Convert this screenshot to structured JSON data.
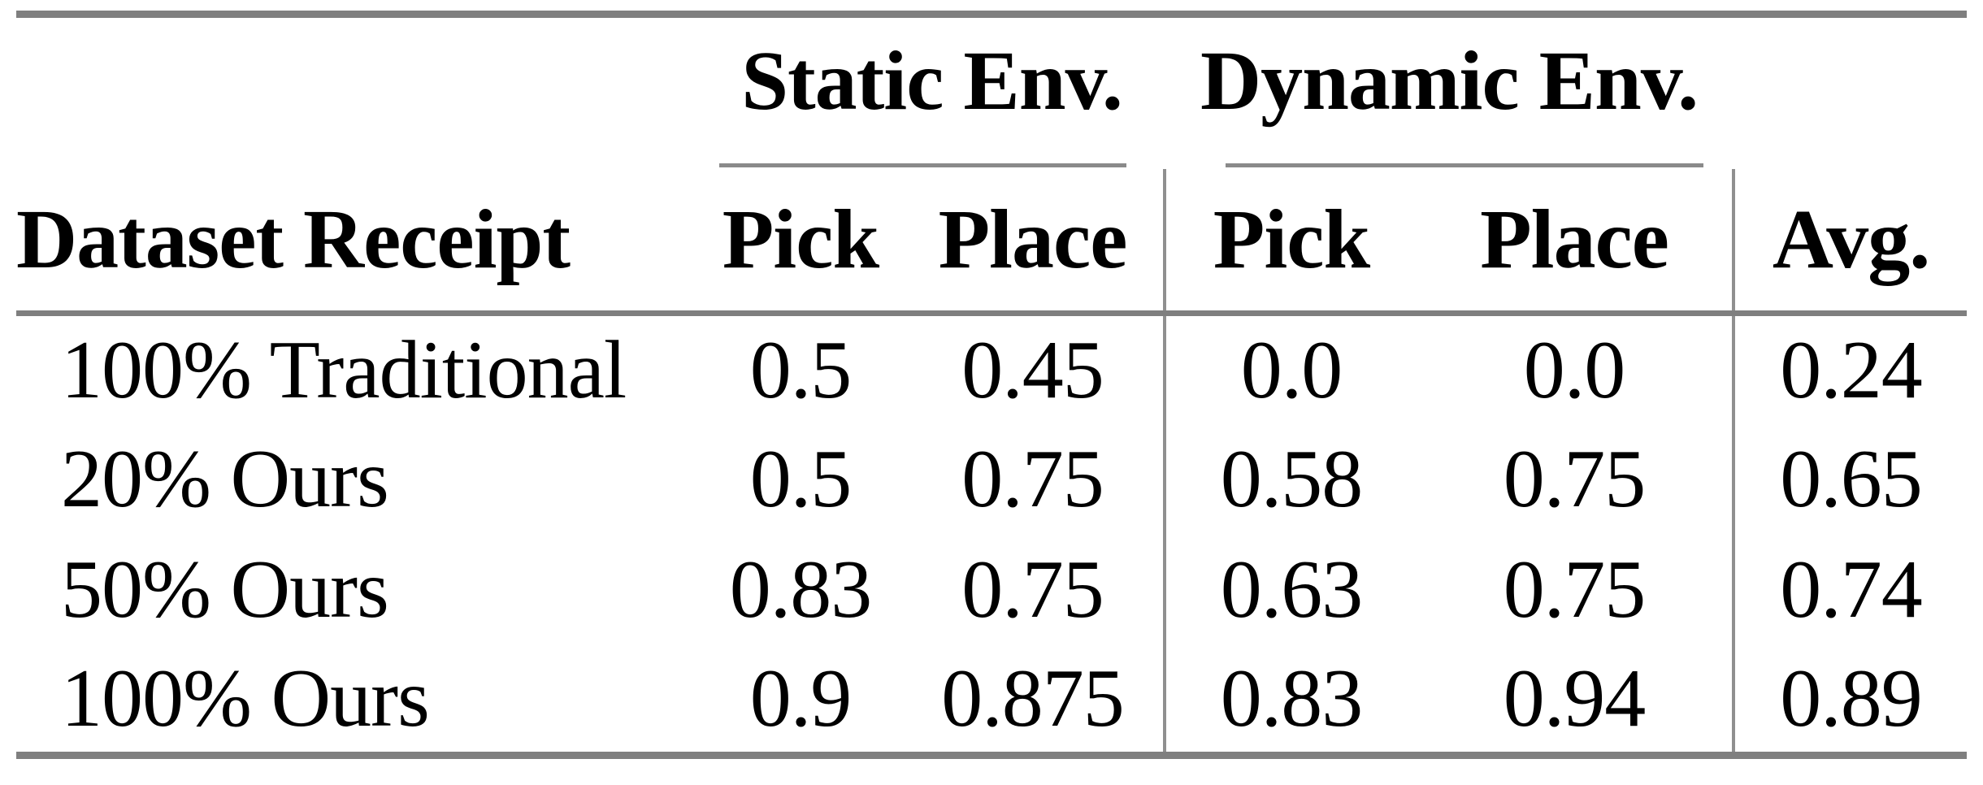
{
  "table": {
    "groups": {
      "static": "Static Env.",
      "dynamic": "Dynamic Env."
    },
    "headers": {
      "dataset": "Dataset Receipt",
      "static_pick": "Pick",
      "static_place": "Place",
      "dynamic_pick": "Pick",
      "dynamic_place": "Place",
      "avg": "Avg."
    },
    "rows": [
      {
        "label": "100% Traditional",
        "static_pick": "0.5",
        "static_place": "0.45",
        "dynamic_pick": "0.0",
        "dynamic_place": "0.0",
        "avg": "0.24"
      },
      {
        "label": "20% Ours",
        "static_pick": "0.5",
        "static_place": "0.75",
        "dynamic_pick": "0.58",
        "dynamic_place": "0.75",
        "avg": "0.65"
      },
      {
        "label": "50% Ours",
        "static_pick": "0.83",
        "static_place": "0.75",
        "dynamic_pick": "0.63",
        "dynamic_place": "0.75",
        "avg": "0.74"
      },
      {
        "label": "100% Ours",
        "static_pick": "0.9",
        "static_place": "0.875",
        "dynamic_pick": "0.83",
        "dynamic_place": "0.94",
        "avg": "0.89"
      }
    ],
    "colors": {
      "rule_gray": "#7f7f7f",
      "vline_gray": "#8f8f8f",
      "text": "#000000",
      "background": "#ffffff"
    }
  },
  "chart_data": {
    "type": "table",
    "columns": [
      "Dataset Receipt",
      "Static Env. Pick",
      "Static Env. Place",
      "Dynamic Env. Pick",
      "Dynamic Env. Place",
      "Avg."
    ],
    "rows": [
      [
        "100% Traditional",
        0.5,
        0.45,
        0.0,
        0.0,
        0.24
      ],
      [
        "20% Ours",
        0.5,
        0.75,
        0.58,
        0.75,
        0.65
      ],
      [
        "50% Ours",
        0.83,
        0.75,
        0.63,
        0.75,
        0.74
      ],
      [
        "100% Ours",
        0.9,
        0.875,
        0.83,
        0.94,
        0.89
      ]
    ]
  }
}
